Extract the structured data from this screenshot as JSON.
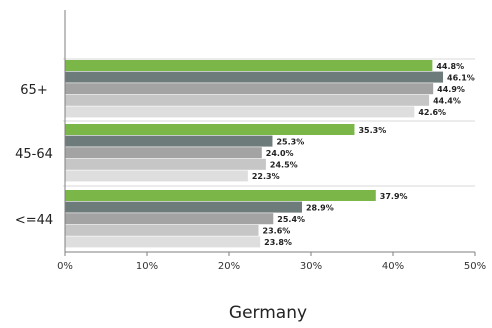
{
  "chart_data": {
    "type": "bar",
    "orientation": "horizontal",
    "title": "Germany",
    "xlabel": "",
    "ylabel": "",
    "xlim": [
      0,
      50
    ],
    "x_ticks": [
      "0%",
      "10%",
      "20%",
      "30%",
      "40%",
      "50%"
    ],
    "categories": [
      "65+",
      "45-64",
      "<=44"
    ],
    "series": [
      {
        "color": "#7ab648",
        "values": [
          44.8,
          35.3,
          37.9
        ],
        "labels": [
          "44.8%",
          "35.3%",
          "37.9%"
        ]
      },
      {
        "color": "#6e7b7b",
        "values": [
          46.1,
          25.3,
          28.9
        ],
        "labels": [
          "46.1%",
          "25.3%",
          "28.9%"
        ]
      },
      {
        "color": "#a3a3a3",
        "values": [
          44.9,
          24.0,
          25.4
        ],
        "labels": [
          "44.9%",
          "24.0%",
          "25.4%"
        ]
      },
      {
        "color": "#c6c6c6",
        "values": [
          44.4,
          24.5,
          23.6
        ],
        "labels": [
          "44.4%",
          "24.5%",
          "23.6%"
        ]
      },
      {
        "color": "#dedede",
        "values": [
          42.6,
          22.3,
          23.8
        ],
        "labels": [
          "42.6%",
          "22.3%",
          "23.8%"
        ]
      }
    ],
    "grid": false,
    "legend": "none"
  }
}
